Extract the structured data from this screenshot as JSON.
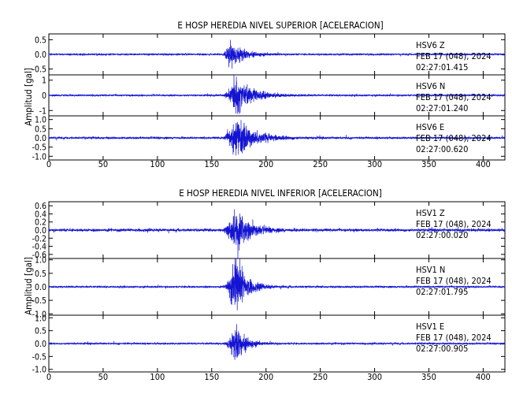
{
  "colors": {
    "trace": "#1414d2",
    "axis": "#000000",
    "text": "#000000"
  },
  "x_ticks": [
    0,
    50,
    100,
    150,
    200,
    250,
    300,
    350,
    400
  ],
  "chart_data": [
    {
      "type": "line",
      "title": "E HOSP HEREDIA NIVEL SUPERIOR [ACELERACION]",
      "ylabel": "Amplitud [gal]",
      "xlim": [
        0,
        420
      ],
      "channels": [
        {
          "station": "HSV6",
          "component": "Z",
          "date": "FEB 17 (048), 2024",
          "time": "02:27:01.415",
          "ylim": [
            -0.7,
            0.7
          ],
          "yticks": [
            -0.5,
            0.0,
            0.5
          ],
          "ytick_labels": [
            "-0.5",
            "0.0",
            "0.5"
          ],
          "noise": 0.025,
          "peak": 0.42,
          "onset": 160,
          "peak_time": 167,
          "decay": 11,
          "event_end": 200
        },
        {
          "station": "HSV6",
          "component": "N",
          "date": "FEB 17 (048), 2024",
          "time": "02:27:01.240",
          "ylim": [
            -1.35,
            1.35
          ],
          "yticks": [
            -1.0,
            0.0,
            1.0
          ],
          "ytick_labels": [
            "-1",
            "0",
            "1"
          ],
          "noise": 0.05,
          "peak": 0.95,
          "onset": 160,
          "peak_time": 172,
          "decay": 15,
          "event_end": 205
        },
        {
          "station": "HSV6",
          "component": "E",
          "date": "FEB 17 (048), 2024",
          "time": "02:27:00.620",
          "ylim": [
            -1.2,
            1.2
          ],
          "yticks": [
            -1.0,
            -0.5,
            0.0,
            0.5,
            1.0
          ],
          "ytick_labels": [
            "-1.0",
            "-0.5",
            "0.0",
            "0.5",
            "1.0"
          ],
          "noise": 0.05,
          "peak": 0.98,
          "onset": 160,
          "peak_time": 172,
          "decay": 15,
          "event_end": 210
        }
      ]
    },
    {
      "type": "line",
      "title": "E HOSP HEREDIA NIVEL INFERIOR [ACELERACION]",
      "ylabel": "Amplitud [gal]",
      "xlim": [
        0,
        420
      ],
      "channels": [
        {
          "station": "HSV1",
          "component": "Z",
          "date": "FEB 17 (048), 2024",
          "time": "02:27:00.020",
          "ylim": [
            -0.7,
            0.7
          ],
          "yticks": [
            -0.6,
            -0.4,
            -0.2,
            0.0,
            0.2,
            0.4,
            0.6
          ],
          "ytick_labels": [
            "-0.6",
            "-0.4",
            "-0.2",
            "0.0",
            "0.2",
            "0.4",
            "0.6"
          ],
          "noise": 0.03,
          "peak": 0.48,
          "onset": 160,
          "peak_time": 173,
          "decay": 11,
          "event_end": 205
        },
        {
          "station": "HSV1",
          "component": "N",
          "date": "FEB 17 (048), 2024",
          "time": "02:27:01.795",
          "ylim": [
            -1.05,
            1.05
          ],
          "yticks": [
            -1.0,
            -0.5,
            0.0,
            0.5,
            1.0
          ],
          "ytick_labels": [
            "-1.0",
            "-0.5",
            "0.0",
            "0.5",
            "1.0"
          ],
          "noise": 0.03,
          "peak": 0.9,
          "onset": 160,
          "peak_time": 173,
          "decay": 9,
          "event_end": 200
        },
        {
          "station": "HSV1",
          "component": "E",
          "date": "FEB 17 (048), 2024",
          "time": "02:27:00.905",
          "ylim": [
            -1.1,
            1.1
          ],
          "yticks": [
            -1.0,
            -0.5,
            0.0,
            0.5,
            1.0
          ],
          "ytick_labels": [
            "-1.0",
            "-0.5",
            "0.0",
            "0.5",
            "1.0"
          ],
          "noise": 0.03,
          "peak": 0.6,
          "onset": 160,
          "peak_time": 173,
          "decay": 8,
          "event_end": 195
        }
      ]
    }
  ]
}
